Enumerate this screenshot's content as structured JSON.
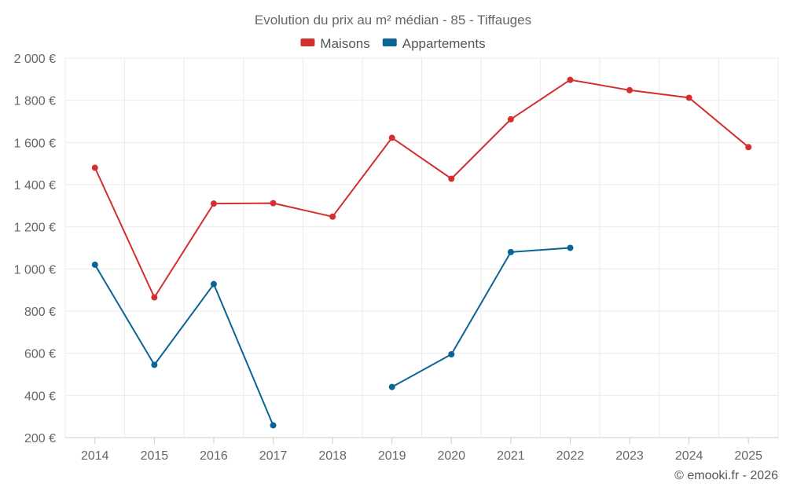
{
  "chart_data": {
    "type": "line",
    "title": "Evolution du prix au m² médian - 85 - Tiffauges",
    "xlabel": "",
    "ylabel": "",
    "categories": [
      "2014",
      "2015",
      "2016",
      "2017",
      "2018",
      "2019",
      "2020",
      "2021",
      "2022",
      "2023",
      "2024",
      "2025"
    ],
    "ylim": [
      200,
      2000
    ],
    "yticks": [
      200,
      400,
      600,
      800,
      1000,
      1200,
      1400,
      1600,
      1800,
      2000
    ],
    "ytick_labels": [
      "200 €",
      "400 €",
      "600 €",
      "800 €",
      "1 000 €",
      "1 200 €",
      "1 400 €",
      "1 600 €",
      "1 800 €",
      "2 000 €"
    ],
    "grid": true,
    "legend_position": "top-center",
    "series": [
      {
        "name": "Maisons",
        "color": "#d32f2f",
        "values": [
          1480,
          865,
          1310,
          1312,
          1248,
          1622,
          1428,
          1710,
          1897,
          1848,
          1812,
          1578
        ]
      },
      {
        "name": "Appartements",
        "color": "#0b6496",
        "values": [
          1020,
          545,
          928,
          258,
          null,
          440,
          595,
          1080,
          1100,
          null,
          null,
          null
        ]
      }
    ],
    "credit": "© emooki.fr - 2026"
  }
}
